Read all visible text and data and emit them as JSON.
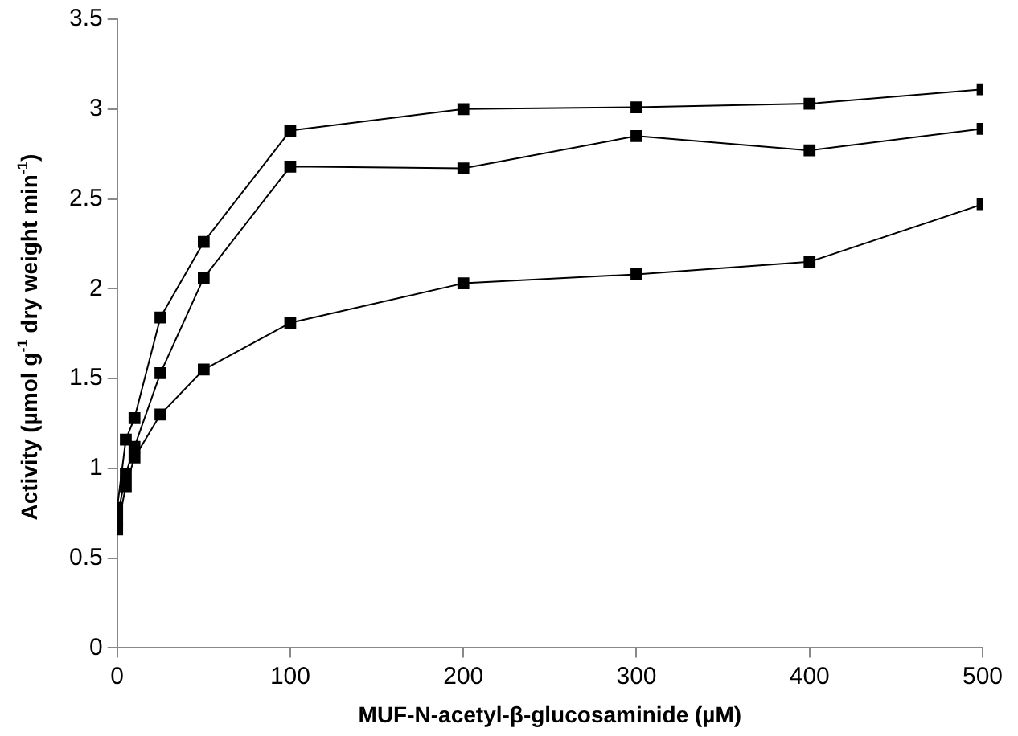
{
  "chart_data": {
    "type": "line",
    "xlabel": "MUF-N-acetyl-β-glucosaminide (µM)",
    "ylabel": "Activity (µmol g$^{-1}$ dry weight min$^{-1}$)",
    "x": [
      0,
      5,
      10,
      25,
      50,
      100,
      200,
      300,
      400,
      500
    ],
    "series": [
      {
        "color": "#000000",
        "values": [
          0.78,
          1.16,
          1.28,
          1.84,
          2.26,
          2.88,
          3.0,
          3.01,
          3.03,
          3.11
        ]
      },
      {
        "color": "#000000",
        "values": [
          0.72,
          0.97,
          1.12,
          1.53,
          2.06,
          2.68,
          2.67,
          2.85,
          2.77,
          2.89
        ]
      },
      {
        "color": "#000000",
        "values": [
          0.66,
          0.9,
          1.06,
          1.3,
          1.55,
          1.81,
          2.03,
          2.08,
          2.15,
          2.47
        ]
      }
    ],
    "xlim": [
      0,
      500
    ],
    "xticks": [
      0,
      100,
      200,
      300,
      400,
      500
    ],
    "ylim": [
      0,
      3.5
    ],
    "yticks": [
      0,
      0.5,
      1,
      1.5,
      2,
      2.5,
      3,
      3.5
    ],
    "grid": false,
    "legend": false,
    "marker": "square",
    "line_style": "solid"
  }
}
